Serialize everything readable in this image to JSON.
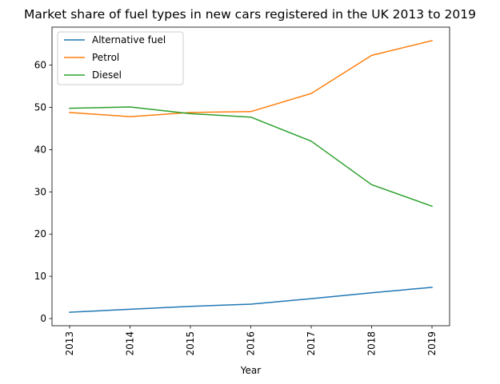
{
  "chart_data": {
    "type": "line",
    "title": "Market share of fuel types in new cars registered in the UK 2013 to 2019",
    "xlabel": "Year",
    "ylabel": "",
    "x": [
      "2013",
      "2014",
      "2015",
      "2016",
      "2017",
      "2018",
      "2019"
    ],
    "ylim": [
      -1.7,
      69
    ],
    "yticks": [
      0,
      10,
      20,
      30,
      40,
      50,
      60
    ],
    "grid": false,
    "legend_position": "top-left",
    "series": [
      {
        "name": "Alternative fuel",
        "color": "#1f77b4",
        "values": [
          1.5,
          2.2,
          2.9,
          3.4,
          4.7,
          6.1,
          7.4
        ]
      },
      {
        "name": "Petrol",
        "color": "#ff7f0e",
        "values": [
          48.8,
          47.8,
          48.8,
          49.0,
          53.3,
          62.3,
          65.8
        ]
      },
      {
        "name": "Diesel",
        "color": "#2ca02c",
        "values": [
          49.8,
          50.1,
          48.5,
          47.7,
          42.0,
          31.7,
          26.6
        ]
      }
    ]
  }
}
